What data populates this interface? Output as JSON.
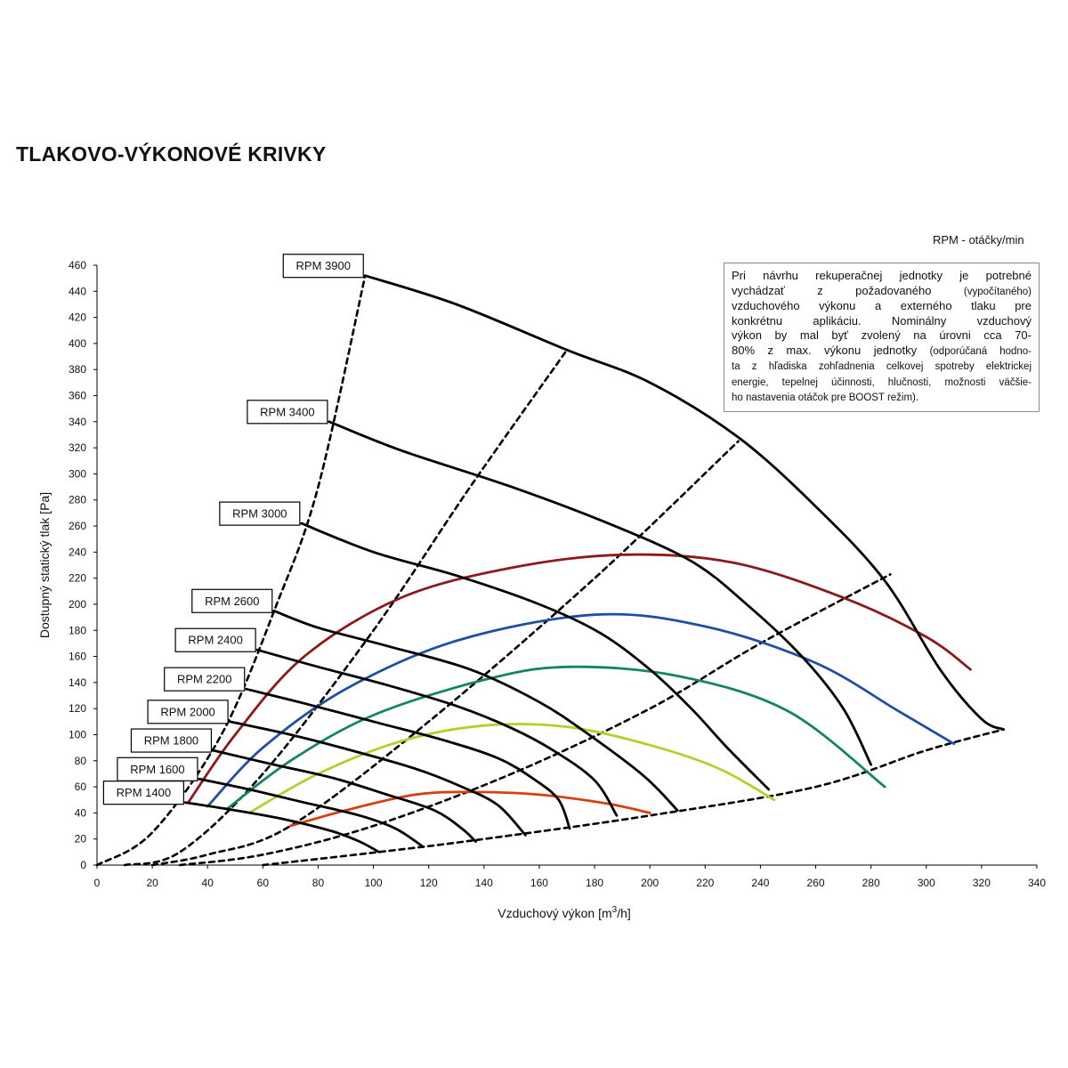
{
  "page": {
    "title": "TLAKOVO-VÝKONOVÉ KRIVKY",
    "rpm_caption": "RPM - otáčky/min"
  },
  "note": {
    "lines": [
      {
        "segments": [
          {
            "text": "Pri návrhu rekuperačnej jednotky je potrebné",
            "small": false
          }
        ]
      },
      {
        "segments": [
          {
            "text": "vychádzať z požadovaného ",
            "small": false
          },
          {
            "text": "(vypočítaného)",
            "small": true
          }
        ]
      },
      {
        "segments": [
          {
            "text": "vzduchového výkonu a externého tlaku pre",
            "small": false
          }
        ]
      },
      {
        "segments": [
          {
            "text": "konkrétnu aplikáciu. Nominálny vzduchový",
            "small": false
          }
        ]
      },
      {
        "segments": [
          {
            "text": "výkon by mal byť zvolený na úrovni cca 70-",
            "small": false
          }
        ]
      },
      {
        "segments": [
          {
            "text": "80% z max. výkonu jednotky ",
            "small": false
          },
          {
            "text": "(odporúčaná hodno-",
            "small": true
          }
        ]
      },
      {
        "segments": [
          {
            "text": "ta z hľadiska zohľadnenia celkovej spotreby elektrickej",
            "small": true
          }
        ]
      },
      {
        "segments": [
          {
            "text": "energie, tepelnej účinnosti, hlučnosti, možnosti väčšie-",
            "small": true
          }
        ]
      },
      {
        "segments": [
          {
            "text": "ho nastavenia otáčok pre BOOST režim).",
            "small": true
          }
        ]
      }
    ]
  },
  "chart_data": {
    "type": "line",
    "title": "TLAKOVO-VÝKONOVÉ KRIVKY",
    "xlabel": "Vzduchový výkon [m3/h]",
    "ylabel": "Dostupný statický tlak [Pa]",
    "xlim": [
      0,
      340
    ],
    "ylim": [
      0,
      460
    ],
    "xticks": [
      0,
      20,
      40,
      60,
      80,
      100,
      120,
      140,
      160,
      180,
      200,
      220,
      240,
      260,
      280,
      300,
      320,
      340
    ],
    "yticks": [
      0,
      20,
      40,
      60,
      80,
      100,
      120,
      140,
      160,
      180,
      200,
      220,
      240,
      260,
      280,
      300,
      320,
      340,
      360,
      380,
      400,
      420,
      440,
      460
    ],
    "grid": false,
    "series": [
      {
        "name": "RPM 3900",
        "color": "#000000",
        "style": "solid",
        "points": [
          [
            97,
            452
          ],
          [
            130,
            430
          ],
          [
            170,
            395
          ],
          [
            200,
            370
          ],
          [
            232,
            328
          ],
          [
            260,
            275
          ],
          [
            285,
            218
          ],
          [
            305,
            150
          ],
          [
            320,
            112
          ],
          [
            328,
            104
          ]
        ]
      },
      {
        "name": "RPM 3400",
        "color": "#000000",
        "style": "solid",
        "points": [
          [
            84,
            340
          ],
          [
            110,
            318
          ],
          [
            150,
            290
          ],
          [
            185,
            262
          ],
          [
            215,
            233
          ],
          [
            235,
            200
          ],
          [
            255,
            160
          ],
          [
            270,
            120
          ],
          [
            280,
            77
          ]
        ]
      },
      {
        "name": "RPM 3000",
        "color": "#000000",
        "style": "solid",
        "points": [
          [
            74,
            262
          ],
          [
            100,
            240
          ],
          [
            130,
            222
          ],
          [
            160,
            200
          ],
          [
            182,
            178
          ],
          [
            200,
            150
          ],
          [
            215,
            120
          ],
          [
            228,
            90
          ],
          [
            243,
            58
          ]
        ]
      },
      {
        "name": "RPM 2600",
        "color": "#000000",
        "style": "solid",
        "points": [
          [
            64,
            195
          ],
          [
            80,
            182
          ],
          [
            105,
            168
          ],
          [
            135,
            150
          ],
          [
            160,
            125
          ],
          [
            178,
            100
          ],
          [
            198,
            68
          ],
          [
            210,
            42
          ]
        ]
      },
      {
        "name": "RPM 2400",
        "color": "#000000",
        "style": "solid",
        "points": [
          [
            58,
            165
          ],
          [
            80,
            152
          ],
          [
            105,
            138
          ],
          [
            130,
            122
          ],
          [
            150,
            105
          ],
          [
            165,
            88
          ],
          [
            180,
            65
          ],
          [
            188,
            38
          ]
        ]
      },
      {
        "name": "RPM 2200",
        "color": "#000000",
        "style": "solid",
        "points": [
          [
            54,
            135
          ],
          [
            75,
            124
          ],
          [
            100,
            110
          ],
          [
            125,
            96
          ],
          [
            145,
            82
          ],
          [
            158,
            66
          ],
          [
            167,
            50
          ],
          [
            171,
            28
          ]
        ]
      },
      {
        "name": "RPM 2000",
        "color": "#000000",
        "style": "solid",
        "points": [
          [
            48,
            110
          ],
          [
            70,
            100
          ],
          [
            92,
            88
          ],
          [
            115,
            74
          ],
          [
            132,
            60
          ],
          [
            145,
            46
          ],
          [
            155,
            23
          ]
        ]
      },
      {
        "name": "RPM 1800",
        "color": "#000000",
        "style": "solid",
        "points": [
          [
            42,
            88
          ],
          [
            62,
            78
          ],
          [
            85,
            67
          ],
          [
            105,
            54
          ],
          [
            122,
            42
          ],
          [
            132,
            28
          ],
          [
            137,
            18
          ]
        ]
      },
      {
        "name": "RPM 1600",
        "color": "#000000",
        "style": "solid",
        "points": [
          [
            37,
            66
          ],
          [
            55,
            58
          ],
          [
            75,
            48
          ],
          [
            95,
            38
          ],
          [
            108,
            28
          ],
          [
            118,
            14
          ]
        ]
      },
      {
        "name": "RPM 1400",
        "color": "#000000",
        "style": "solid",
        "points": [
          [
            32,
            48
          ],
          [
            50,
            42
          ],
          [
            68,
            35
          ],
          [
            85,
            26
          ],
          [
            95,
            18
          ],
          [
            102,
            10
          ]
        ]
      },
      {
        "name": "",
        "color": "#8b1a1a",
        "style": "solid",
        "points": [
          [
            33,
            48
          ],
          [
            50,
            100
          ],
          [
            75,
            160
          ],
          [
            110,
            205
          ],
          [
            150,
            228
          ],
          [
            190,
            238
          ],
          [
            230,
            232
          ],
          [
            270,
            205
          ],
          [
            300,
            175
          ],
          [
            316,
            150
          ]
        ]
      },
      {
        "name": "",
        "color": "#1f4fa3",
        "style": "solid",
        "points": [
          [
            40,
            45
          ],
          [
            60,
            90
          ],
          [
            90,
            135
          ],
          [
            130,
            172
          ],
          [
            180,
            192
          ],
          [
            220,
            183
          ],
          [
            260,
            155
          ],
          [
            290,
            118
          ],
          [
            310,
            93
          ]
        ]
      },
      {
        "name": "",
        "color": "#13875a",
        "style": "solid",
        "points": [
          [
            47,
            43
          ],
          [
            70,
            80
          ],
          [
            100,
            115
          ],
          [
            140,
            142
          ],
          [
            170,
            152
          ],
          [
            210,
            145
          ],
          [
            250,
            118
          ],
          [
            285,
            60
          ]
        ]
      },
      {
        "name": "",
        "color": "#b8cc2a",
        "style": "solid",
        "points": [
          [
            55,
            40
          ],
          [
            80,
            70
          ],
          [
            110,
            95
          ],
          [
            140,
            107
          ],
          [
            170,
            106
          ],
          [
            200,
            92
          ],
          [
            225,
            74
          ],
          [
            245,
            50
          ]
        ]
      },
      {
        "name": "",
        "color": "#d4400e",
        "style": "solid",
        "points": [
          [
            70,
            30
          ],
          [
            90,
            42
          ],
          [
            115,
            54
          ],
          [
            135,
            56
          ],
          [
            160,
            54
          ],
          [
            185,
            47
          ],
          [
            200,
            40
          ]
        ]
      },
      {
        "name": "",
        "color": "#000000",
        "style": "dashed",
        "points": [
          [
            0,
            0
          ],
          [
            20,
            25
          ],
          [
            45,
            100
          ],
          [
            65,
            200
          ],
          [
            80,
            290
          ],
          [
            97,
            452
          ]
        ]
      },
      {
        "name": "",
        "color": "#000000",
        "style": "dashed",
        "points": [
          [
            10,
            0
          ],
          [
            30,
            10
          ],
          [
            60,
            70
          ],
          [
            100,
            180
          ],
          [
            135,
            290
          ],
          [
            170,
            395
          ]
        ]
      },
      {
        "name": "",
        "color": "#000000",
        "style": "dashed",
        "points": [
          [
            20,
            0
          ],
          [
            40,
            8
          ],
          [
            70,
            30
          ],
          [
            120,
            110
          ],
          [
            180,
            220
          ],
          [
            232,
            325
          ]
        ]
      },
      {
        "name": "",
        "color": "#000000",
        "style": "dashed",
        "points": [
          [
            30,
            0
          ],
          [
            60,
            8
          ],
          [
            100,
            30
          ],
          [
            150,
            70
          ],
          [
            200,
            120
          ],
          [
            240,
            170
          ],
          [
            287,
            223
          ]
        ]
      },
      {
        "name": "",
        "color": "#000000",
        "style": "dashed",
        "points": [
          [
            60,
            0
          ],
          [
            102,
            10
          ],
          [
            140,
            20
          ],
          [
            200,
            38
          ],
          [
            260,
            60
          ],
          [
            300,
            88
          ],
          [
            328,
            104
          ]
        ]
      }
    ],
    "rpm_labels": [
      {
        "text": "RPM 3900",
        "x": 97,
        "y": 452
      },
      {
        "text": "RPM 3400",
        "x": 84,
        "y": 340
      },
      {
        "text": "RPM 3000",
        "x": 74,
        "y": 262
      },
      {
        "text": "RPM 2600",
        "x": 64,
        "y": 195
      },
      {
        "text": "RPM 2400",
        "x": 58,
        "y": 165
      },
      {
        "text": "RPM 2200",
        "x": 54,
        "y": 135
      },
      {
        "text": "RPM 2000",
        "x": 48,
        "y": 110
      },
      {
        "text": "RPM 1800",
        "x": 42,
        "y": 88
      },
      {
        "text": "RPM 1600",
        "x": 37,
        "y": 66
      },
      {
        "text": "RPM 1400",
        "x": 32,
        "y": 48
      }
    ]
  }
}
